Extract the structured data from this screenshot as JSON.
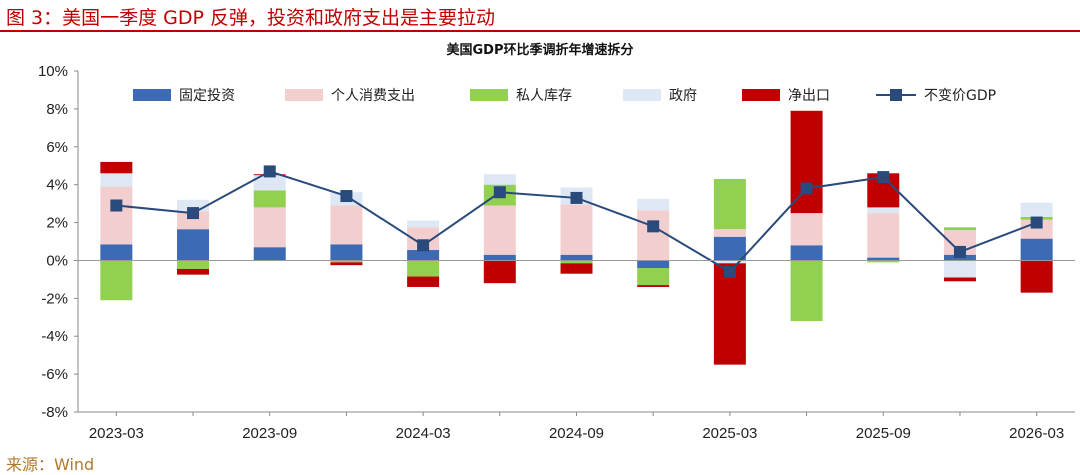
{
  "figure": {
    "title": "图 3：美国一季度 GDP 反弹，投资和政府支出是主要拉动",
    "source": "来源：Wind"
  },
  "colors": {
    "fixed_investment": "#3d6ab4",
    "consumption": "#f2cece",
    "inventory": "#92d050",
    "government": "#dde8f4",
    "net_exports": "#c00000",
    "real_gdp": "#2a4a7c",
    "accent": "#c00000"
  },
  "chart_data": {
    "type": "bar",
    "stacked": true,
    "title": "美国GDP环比季调折年增速拆分",
    "x": [
      "2023-03",
      "2023-06",
      "2023-09",
      "2023-12",
      "2024-03",
      "2024-06",
      "2024-09",
      "2024-12",
      "2025-03",
      "2025-06",
      "2025-09",
      "2025-12",
      "2026-03"
    ],
    "x_tick_labels": [
      "2023-03",
      "2023-09",
      "2024-03",
      "2024-09",
      "2025-03",
      "2025-09",
      "2026-03"
    ],
    "yticks": [
      "10%",
      "8%",
      "6%",
      "4%",
      "2%",
      "0%",
      "-2%",
      "-4%",
      "-6%",
      "-8%"
    ],
    "ylim": [
      -8,
      10
    ],
    "legend_position": "top",
    "series": [
      {
        "name": "固定投资",
        "color_key": "fixed_investment",
        "values": [
          0.85,
          1.65,
          0.7,
          0.85,
          0.55,
          0.3,
          0.3,
          -0.4,
          1.25,
          0.8,
          0.15,
          0.3,
          1.15
        ]
      },
      {
        "name": "个人消费支出",
        "color_key": "consumption",
        "values": [
          3.05,
          0.95,
          2.1,
          2.05,
          1.2,
          2.6,
          2.65,
          2.65,
          0.4,
          1.7,
          2.35,
          1.3,
          1.0
        ]
      },
      {
        "name": "私人库存",
        "color_key": "inventory",
        "values": [
          -2.1,
          -0.45,
          0.9,
          -0.1,
          -0.85,
          1.1,
          -0.15,
          -0.9,
          2.65,
          -3.2,
          -0.1,
          0.15,
          0.15
        ]
      },
      {
        "name": "政府",
        "color_key": "government",
        "values": [
          0.7,
          0.6,
          0.8,
          0.7,
          0.35,
          0.55,
          0.9,
          0.6,
          -0.15,
          0.0,
          0.3,
          -0.9,
          0.75
        ]
      },
      {
        "name": "净出口",
        "color_key": "net_exports",
        "values": [
          0.6,
          -0.3,
          0.05,
          -0.15,
          -0.55,
          -1.2,
          -0.55,
          -0.1,
          -5.35,
          5.4,
          1.8,
          -0.2,
          -1.7
        ]
      }
    ],
    "line": {
      "name": "不变价GDP",
      "color_key": "real_gdp",
      "values": [
        2.9,
        2.5,
        4.7,
        3.4,
        0.8,
        3.6,
        3.3,
        1.8,
        -0.6,
        3.8,
        4.4,
        0.45,
        2.0
      ]
    }
  }
}
